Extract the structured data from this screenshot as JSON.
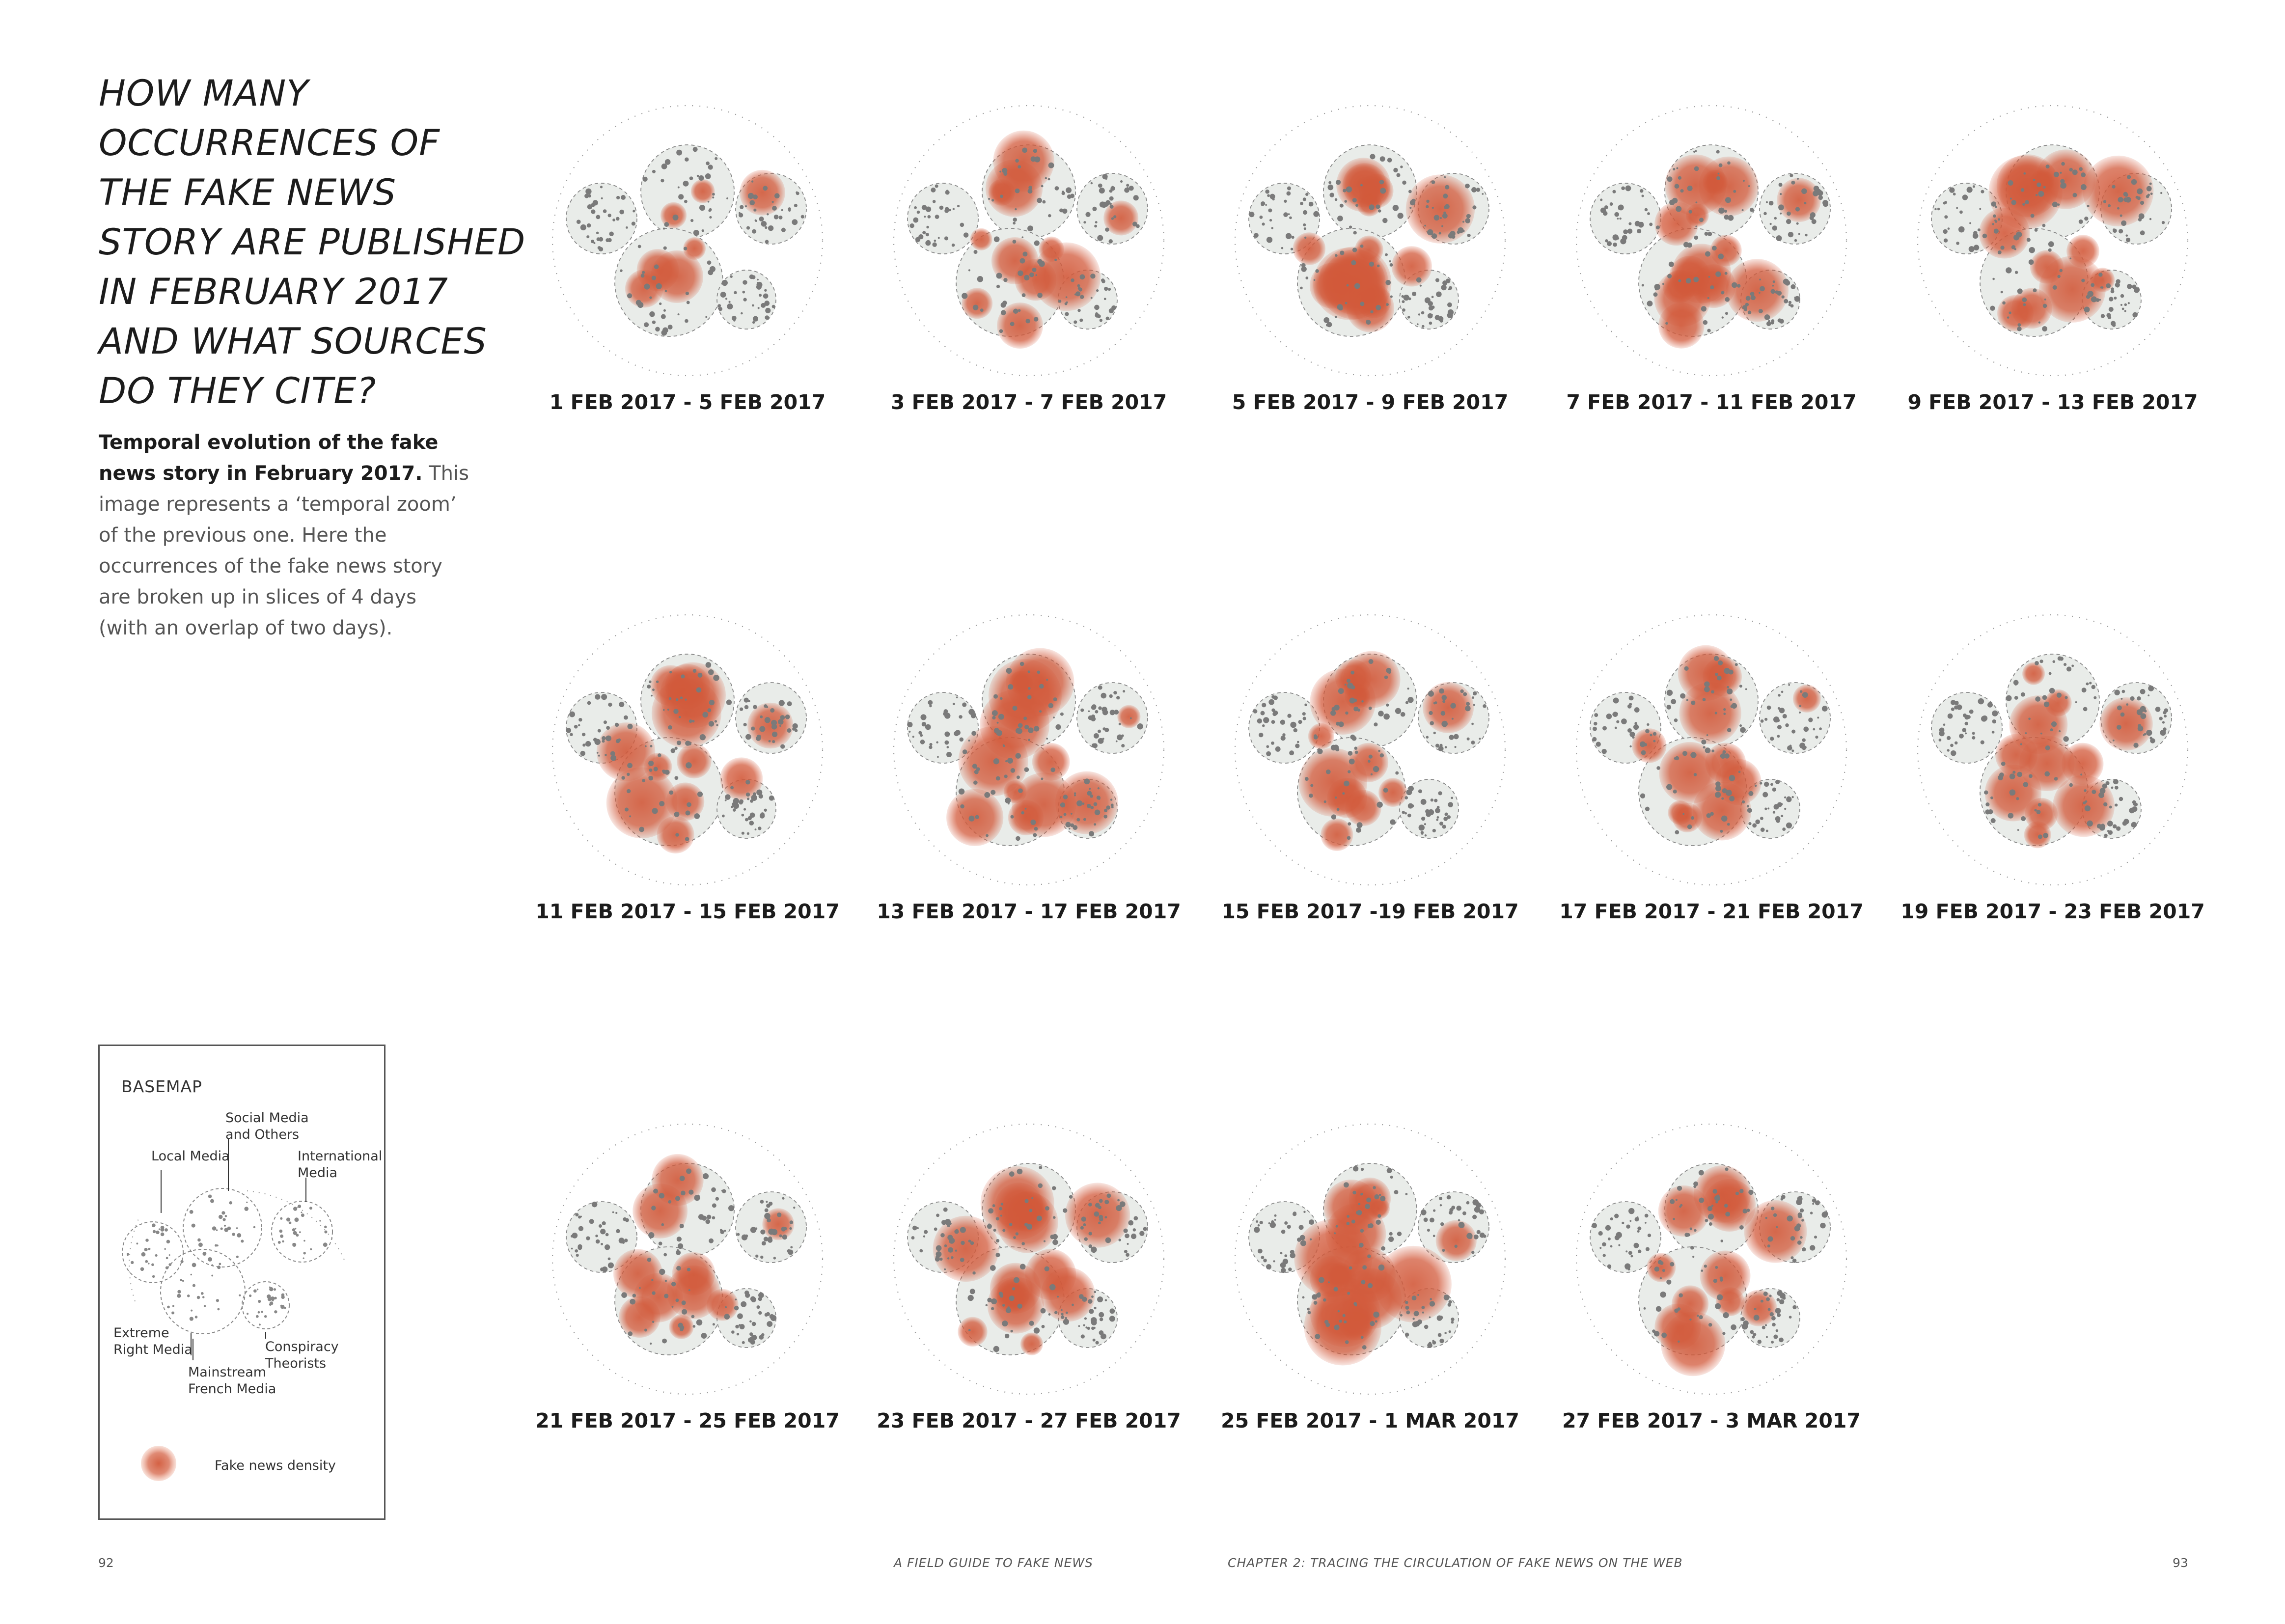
{
  "title_lines": [
    "HOW MANY",
    "OCCURRENCES OF",
    "THE FAKE NEWS",
    "STORY ARE PUBLISHED",
    "IN FEBRUARY 2017",
    "AND WHAT SOURCES",
    "DO THEY CITE?"
  ],
  "description": {
    "lead": "Temporal evolution of the fake news story in February 2017.",
    "body": " This image represents a ‘temporal zoom’ of the previous one. Here the occurrences of the fake news story are broken up in slices of 4 days (with an overlap of two days)."
  },
  "maps": [
    {
      "label": "1 FEB 2017 - 5 FEB 2017",
      "intensity": 0.25
    },
    {
      "label": "3 FEB 2017 - 7 FEB 2017",
      "intensity": 0.6
    },
    {
      "label": "5 FEB 2017 - 9 FEB 2017",
      "intensity": 0.8
    },
    {
      "label": "7 FEB 2017 - 11 FEB 2017",
      "intensity": 0.85
    },
    {
      "label": "9 FEB 2017 - 13 FEB 2017",
      "intensity": 0.7
    },
    {
      "label": "11 FEB 2017 - 15 FEB 2017",
      "intensity": 0.65
    },
    {
      "label": "13 FEB 2017 - 17 FEB 2017",
      "intensity": 0.7
    },
    {
      "label": "15 FEB 2017 -19 FEB 2017",
      "intensity": 0.65
    },
    {
      "label": "17 FEB 2017 - 21 FEB 2017",
      "intensity": 0.6
    },
    {
      "label": "19 FEB 2017 - 23 FEB 2017",
      "intensity": 0.55
    },
    {
      "label": "21 FEB 2017 - 25 FEB 2017",
      "intensity": 0.5
    },
    {
      "label": "23 FEB 2017 - 27 FEB 2017",
      "intensity": 0.75
    },
    {
      "label": "25 FEB 2017 - 1 MAR 2017",
      "intensity": 0.8
    },
    {
      "label": "27 FEB 2017 - 3 MAR 2017",
      "intensity": 0.55
    }
  ],
  "legend": {
    "title": "BASEMAP",
    "social_media": "Social Media\nand Others",
    "local_media": "Local Media",
    "international_media": "International\nMedia",
    "extreme_right": "Extreme\nRight Media",
    "conspiracy": "Conspiracy\nTheorists",
    "mainstream": "Mainstream\nFrench Media",
    "density": "Fake news density"
  },
  "footer": {
    "page_left": "92",
    "book_title": "A FIELD GUIDE TO FAKE NEWS",
    "chapter": "CHAPTER 2: TRACING THE CIRCULATION OF FAKE NEWS ON THE WEB",
    "page_right": "93"
  },
  "colors": {
    "density": "#d2593a",
    "cluster_fill": "#e9ece9",
    "node": "#7a7a7a",
    "outline": "#888888"
  }
}
